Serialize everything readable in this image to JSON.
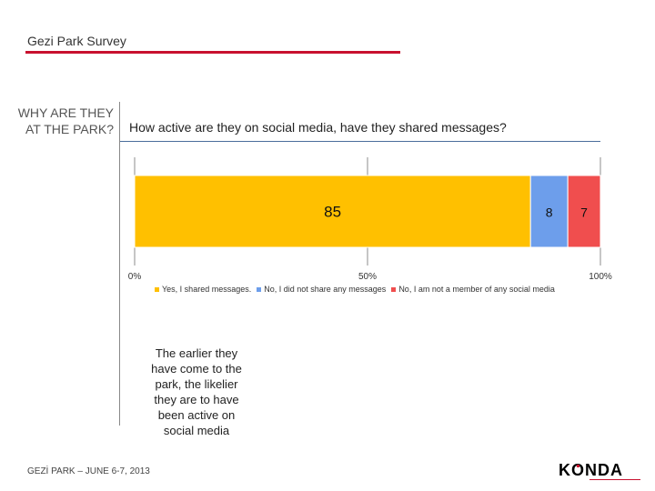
{
  "header": {
    "title": "Gezi Park Survey"
  },
  "side": {
    "question": "WHY ARE THEY AT THE PARK?"
  },
  "question": "How active are they on social media, have they shared messages?",
  "note": "The earlier they have come to the park, the likelier they are to have been active on social media",
  "footer": "GEZİ PARK – JUNE 6-7, 2013",
  "logo": {
    "text": "KONDA"
  },
  "colors": {
    "accent": "#c8102e",
    "yes": "#ffc000",
    "no": "#6d9eeb",
    "not_member": "#f04e4e"
  },
  "chart_data": {
    "type": "bar",
    "orientation": "horizontal",
    "stacked": true,
    "series": [
      {
        "name": "Yes, I shared messages.",
        "values": [
          85
        ]
      },
      {
        "name": "No, I did not share any messages",
        "values": [
          8
        ]
      },
      {
        "name": "No, I am not a member of any social media",
        "values": [
          7
        ]
      }
    ],
    "data_labels": [
      "85",
      "8",
      "7"
    ],
    "xlim": [
      0,
      100
    ],
    "xticks": [
      0,
      50,
      100
    ],
    "xtick_labels": [
      "0%",
      "50%",
      "100%"
    ],
    "grid": true,
    "legend_position": "bottom"
  }
}
